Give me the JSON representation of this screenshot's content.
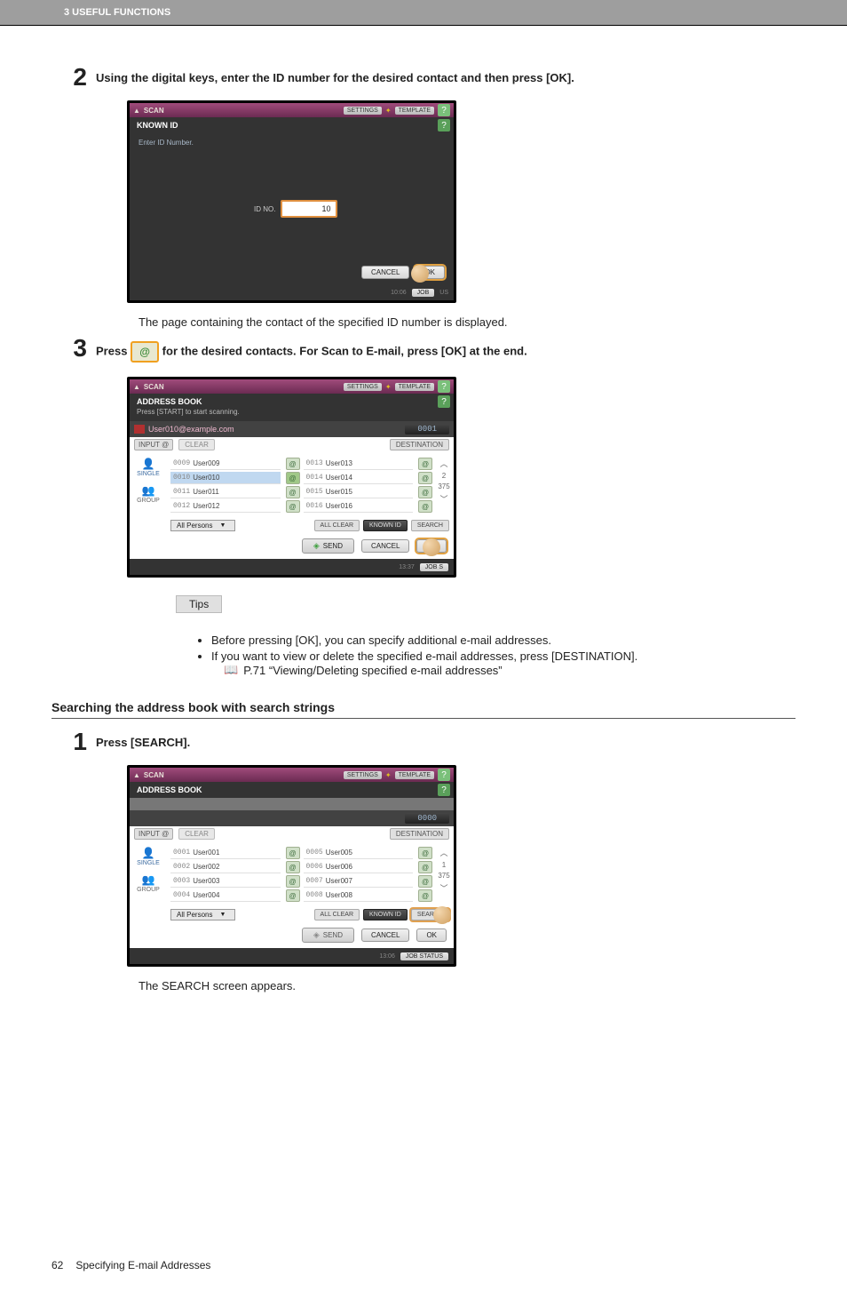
{
  "header": "3 USEFUL FUNCTIONS",
  "steps": {
    "s2": {
      "num": "2",
      "text": "Using the digital keys, enter the ID number for the desired contact and then press [OK].",
      "after_text": "The page containing the contact of the specified ID number is displayed."
    },
    "s3": {
      "num": "3",
      "text_before": "Press",
      "text_after": "for the desired contacts. For Scan to E-mail, press [OK] at the end."
    },
    "s1b": {
      "num": "1",
      "text": "Press [SEARCH].",
      "after_text": "The SEARCH screen appears."
    }
  },
  "screen_known": {
    "top_title": "SCAN",
    "settings": "SETTINGS",
    "template": "TEMPLATE",
    "sub_title": "KNOWN ID",
    "enter_label": "Enter ID Number.",
    "id_label": "ID NO.",
    "id_value": "10",
    "cancel": "CANCEL",
    "ok": "OK",
    "time": "10:06",
    "job": "JOB",
    "us_end": "US"
  },
  "screen_ab1": {
    "top_title": "SCAN",
    "settings": "SETTINGS",
    "template": "TEMPLATE",
    "sub_title": "ADDRESS BOOK",
    "sub_msg": "Press [START] to start scanning.",
    "dest_email": "User010@example.com",
    "count": "0001",
    "input_at": "INPUT @",
    "clear": "CLEAR",
    "destination": "DESTINATION",
    "side_single": "SINGLE",
    "side_group": "GROUP",
    "rows": [
      {
        "n": "0009",
        "u": "User009",
        "sel": false
      },
      {
        "n": "0013",
        "u": "User013",
        "sel": false
      },
      {
        "n": "0010",
        "u": "User010",
        "sel": true
      },
      {
        "n": "0014",
        "u": "User014",
        "sel": false
      },
      {
        "n": "0011",
        "u": "User011",
        "sel": false
      },
      {
        "n": "0015",
        "u": "User015",
        "sel": false
      },
      {
        "n": "0012",
        "u": "User012",
        "sel": false
      },
      {
        "n": "0016",
        "u": "User016",
        "sel": false
      }
    ],
    "page_cur": "2",
    "page_total": "375",
    "dropdown": "All Persons",
    "all_clear": "ALL CLEAR",
    "known_id": "KNOWN ID",
    "search": "SEARCH",
    "send": "SEND",
    "cancel": "CANCEL",
    "ok": "OK",
    "time": "13:37",
    "job_status": "JOB S"
  },
  "screen_ab2": {
    "top_title": "SCAN",
    "settings": "SETTINGS",
    "template": "TEMPLATE",
    "sub_title": "ADDRESS BOOK",
    "count": "0000",
    "input_at": "INPUT @",
    "clear": "CLEAR",
    "destination": "DESTINATION",
    "side_single": "SINGLE",
    "side_group": "GROUP",
    "rows": [
      {
        "n": "0001",
        "u": "User001"
      },
      {
        "n": "0005",
        "u": "User005"
      },
      {
        "n": "0002",
        "u": "User002"
      },
      {
        "n": "0006",
        "u": "User006"
      },
      {
        "n": "0003",
        "u": "User003"
      },
      {
        "n": "0007",
        "u": "User007"
      },
      {
        "n": "0004",
        "u": "User004"
      },
      {
        "n": "0008",
        "u": "User008"
      }
    ],
    "page_cur": "1",
    "page_total": "375",
    "dropdown": "All Persons",
    "all_clear": "ALL CLEAR",
    "known_id": "KNOWN ID",
    "search": "SEARCH",
    "send": "SEND",
    "cancel": "CANCEL",
    "ok": "OK",
    "time": "13:06",
    "job_status": "JOB STATUS"
  },
  "tips": {
    "label": "Tips",
    "b1": "Before pressing [OK], you can specify additional e-mail addresses.",
    "b2": "If you want to view or delete the specified e-mail addresses, press [DESTINATION].",
    "ref": "P.71 “Viewing/Deleting specified e-mail addresses”"
  },
  "section": "Searching the address book with search strings",
  "footer": {
    "page": "62",
    "title": "Specifying E-mail Addresses"
  }
}
